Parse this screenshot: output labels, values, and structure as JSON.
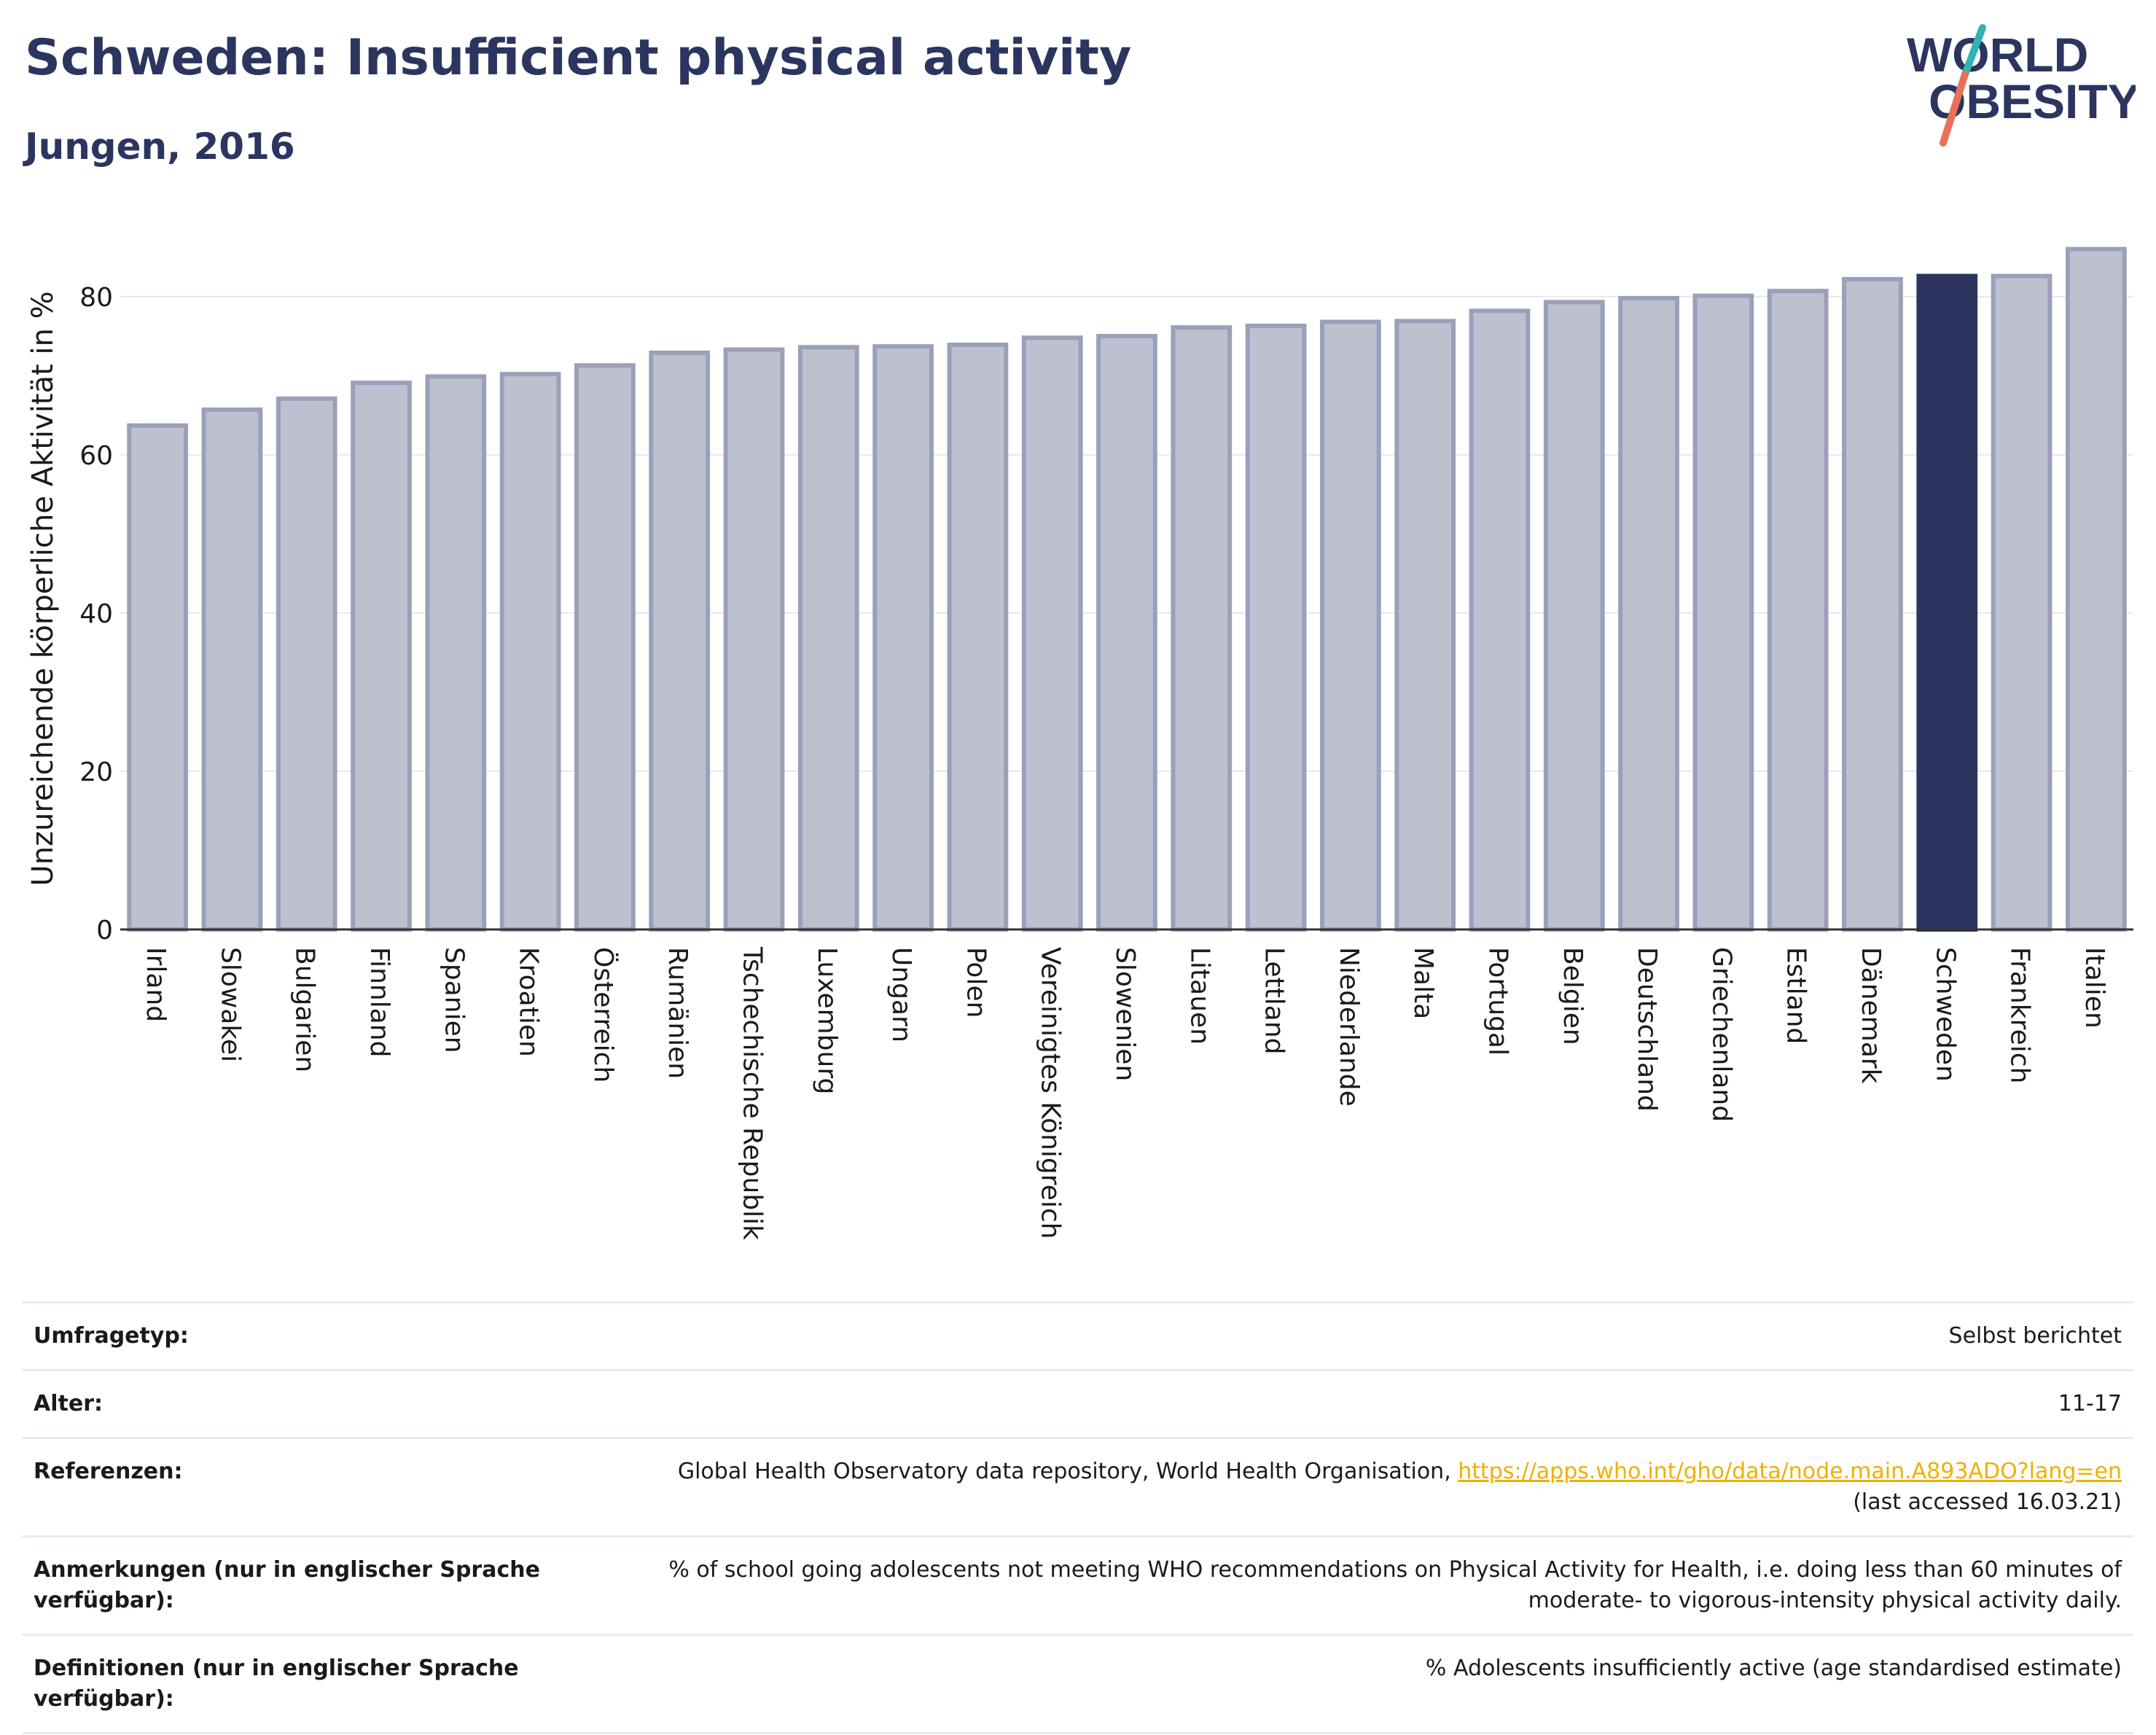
{
  "header": {
    "title": "Schweden: Insufficient physical activity",
    "subtitle": "Jungen, 2016"
  },
  "logo": {
    "line1": "WORLD",
    "line2": "OBESITY"
  },
  "chart_data": {
    "type": "bar",
    "title": "Schweden: Insufficient physical activity",
    "subtitle": "Jungen, 2016",
    "ylabel": "Unzureichende körperliche Aktivität in %",
    "xlabel": "",
    "ylim": [
      0,
      88
    ],
    "yticks": [
      0,
      20,
      40,
      60,
      80
    ],
    "grid": true,
    "highlight": "Schweden",
    "colors": {
      "bar": "#bcc0cf",
      "bar_edge": "#9aa0b8",
      "highlight": "#2b3560"
    },
    "categories": [
      "Irland",
      "Slowakei",
      "Bulgarien",
      "Finnland",
      "Spanien",
      "Kroatien",
      "Österreich",
      "Rumänien",
      "Tschechische Republik",
      "Luxemburg",
      "Ungarn",
      "Polen",
      "Vereinigtes Königreich",
      "Slowenien",
      "Litauen",
      "Lettland",
      "Niederlande",
      "Malta",
      "Portugal",
      "Belgien",
      "Deutschland",
      "Griechenland",
      "Estland",
      "Dänemark",
      "Schweden",
      "Frankreich",
      "Italien"
    ],
    "values": [
      63.7,
      65.7,
      67.1,
      69.1,
      69.9,
      70.2,
      71.3,
      72.9,
      73.3,
      73.6,
      73.7,
      73.9,
      74.8,
      75.0,
      76.1,
      76.3,
      76.8,
      76.9,
      78.2,
      79.3,
      79.8,
      80.1,
      80.7,
      82.2,
      82.6,
      82.6,
      86.0
    ]
  },
  "info": {
    "survey_label": "Umfragetyp:",
    "survey_value": "Selbst berichtet",
    "age_label": "Alter:",
    "age_value": "11-17",
    "references_label": "Referenzen:",
    "references_text": "Global Health Observatory data repository, World Health Organisation, ",
    "references_link": "https://apps.who.int/gho/data/node.main.A893ADO?lang=en",
    "references_accessed": "(last accessed 16.03.21)",
    "notes_label": "Anmerkungen (nur in englischer Sprache verfügbar):",
    "notes_value": "% of school going adolescents not meeting WHO recommendations on Physical Activity for Health, i.e. doing less than 60 minutes of moderate- to vigorous-intensity physical activity daily.",
    "definitions_label": "Definitionen (nur in englischer Sprache verfügbar):",
    "definitions_value": "% Adolescents insufficiently active (age standardised estimate)"
  }
}
